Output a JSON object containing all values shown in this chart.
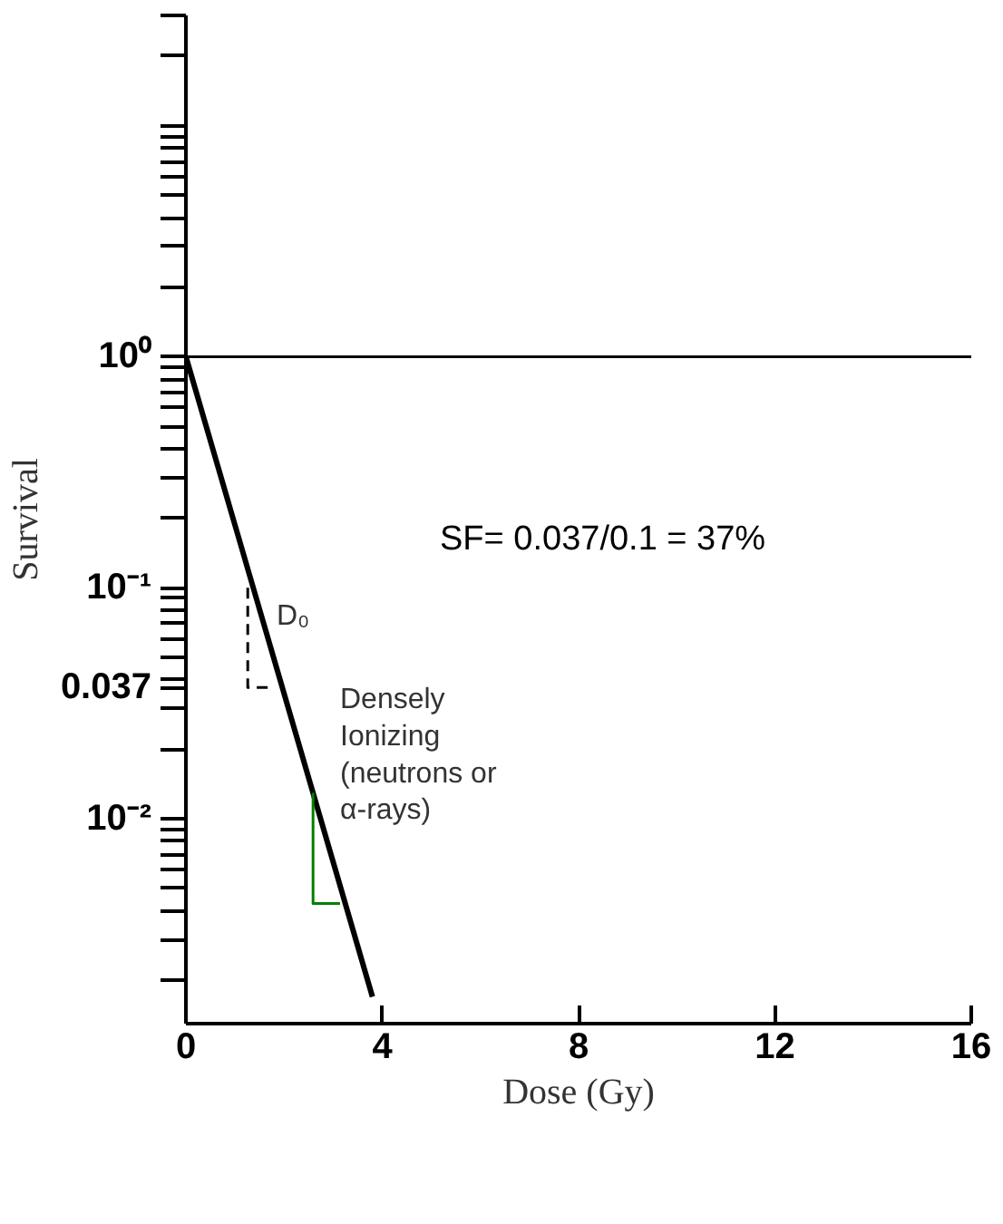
{
  "chart_data": {
    "type": "line",
    "xlabel": "Dose (Gy)",
    "ylabel": "Survival",
    "log": "y",
    "xlim": [
      0,
      16
    ],
    "xticks": [
      0,
      4,
      8,
      12,
      16
    ],
    "ylim": [
      0.0013,
      30
    ],
    "yticks": [
      {
        "value": 0.002,
        "label": null
      },
      {
        "value": 0.003,
        "label": null
      },
      {
        "value": 0.004,
        "label": null
      },
      {
        "value": 0.005,
        "label": null
      },
      {
        "value": 0.006,
        "label": null
      },
      {
        "value": 0.007,
        "label": null
      },
      {
        "value": 0.008,
        "label": null
      },
      {
        "value": 0.009,
        "label": null
      },
      {
        "value": 0.01,
        "label": "10⁻²"
      },
      {
        "value": 0.02,
        "label": null
      },
      {
        "value": 0.03,
        "label": null
      },
      {
        "value": 0.037,
        "label": "0.037"
      },
      {
        "value": 0.04,
        "label": null
      },
      {
        "value": 0.05,
        "label": null
      },
      {
        "value": 0.06,
        "label": null
      },
      {
        "value": 0.07,
        "label": null
      },
      {
        "value": 0.08,
        "label": null
      },
      {
        "value": 0.09,
        "label": null
      },
      {
        "value": 0.1,
        "label": "10⁻¹"
      },
      {
        "value": 0.2,
        "label": null
      },
      {
        "value": 0.3,
        "label": null
      },
      {
        "value": 0.4,
        "label": null
      },
      {
        "value": 0.5,
        "label": null
      },
      {
        "value": 0.6,
        "label": null
      },
      {
        "value": 0.7,
        "label": null
      },
      {
        "value": 0.8,
        "label": null
      },
      {
        "value": 0.9,
        "label": null
      },
      {
        "value": 1,
        "label": "10⁰"
      },
      {
        "value": 2,
        "label": null
      },
      {
        "value": 3,
        "label": null
      },
      {
        "value": 4,
        "label": null
      },
      {
        "value": 5,
        "label": null
      },
      {
        "value": 6,
        "label": null
      },
      {
        "value": 7,
        "label": null
      },
      {
        "value": 8,
        "label": null
      },
      {
        "value": 9,
        "label": null
      },
      {
        "value": 10,
        "label": null
      },
      {
        "value": 20,
        "label": null
      },
      {
        "value": 30,
        "label": null
      }
    ],
    "grid": false,
    "marker": "none",
    "series": [
      {
        "color": "#000000",
        "x": [
          0,
          3.8
        ],
        "values": [
          1,
          0.0017
        ],
        "line_style": "solid"
      },
      {
        "color": "#000000",
        "x": [
          1.26,
          1.26,
          1.77
        ],
        "values": [
          0.1,
          0.037,
          0.037
        ],
        "line_style": "dashed"
      },
      {
        "color": "#008000",
        "x": [
          2.59,
          2.59,
          3.14
        ],
        "values": [
          0.013,
          0.0043,
          0.0043
        ],
        "line_style": "solid"
      }
    ],
    "ref_lines": [
      {
        "axis": "y",
        "value": 1,
        "label": null,
        "color": "#000000",
        "line_style": "solid"
      }
    ],
    "annotations": [
      {
        "text": "D₀",
        "x": 1.7,
        "y": 0.075
      },
      "Densely\nIonizing\n(neutrons or\nα-rays)",
      "SF= 0.037/0.1 = 37%"
    ]
  }
}
